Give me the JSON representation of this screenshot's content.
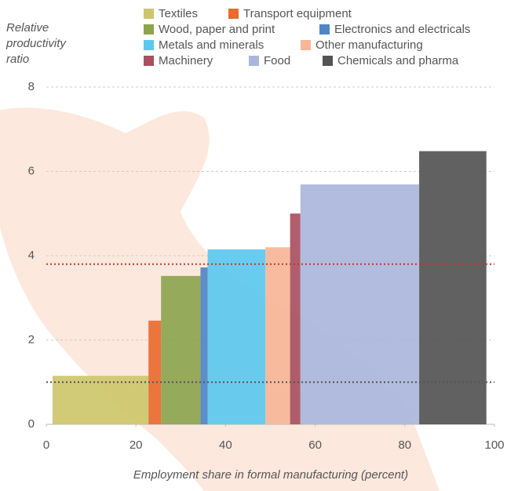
{
  "chart_data": {
    "type": "variable_width_bar",
    "ylabel": [
      "Relative",
      "productivity",
      "ratio"
    ],
    "xlabel": "Employment share in formal manufacturing (percent)",
    "xlim": [
      0,
      100
    ],
    "xticks": [
      0,
      20,
      40,
      60,
      80,
      100
    ],
    "ylim": [
      0,
      8
    ],
    "yticks": [
      0,
      2,
      4,
      6,
      8
    ],
    "grid": true,
    "series": [
      {
        "name": "Textiles",
        "color": "#cdc56a",
        "x_start": 1.4,
        "x_end": 22.8,
        "value": 1.15
      },
      {
        "name": "Transport equipment",
        "color": "#ea6a30",
        "x_start": 22.8,
        "x_end": 25.6,
        "value": 2.46
      },
      {
        "name": "Wood, paper and print",
        "color": "#8ca44e",
        "x_start": 25.6,
        "x_end": 34.4,
        "value": 3.52
      },
      {
        "name": "Electronics and electricals",
        "color": "#4f86c6",
        "x_start": 34.4,
        "x_end": 36.0,
        "value": 3.72
      },
      {
        "name": "Metals and minerals",
        "color": "#5bc8ef",
        "x_start": 36.0,
        "x_end": 48.9,
        "value": 4.15
      },
      {
        "name": "Other manufacturing",
        "color": "#f7b597",
        "x_start": 48.9,
        "x_end": 54.4,
        "value": 4.2
      },
      {
        "name": "Machinery",
        "color": "#a94f5f",
        "x_start": 54.4,
        "x_end": 56.7,
        "value": 5.0
      },
      {
        "name": "Food",
        "color": "#aab6dc",
        "x_start": 56.7,
        "x_end": 83.2,
        "value": 5.69
      },
      {
        "name": "Chemicals and pharma",
        "color": "#545454",
        "x_start": 83.2,
        "x_end": 98.2,
        "value": 6.48
      }
    ],
    "reference_lines": [
      {
        "value": 3.8,
        "color": "#c0392b"
      },
      {
        "value": 1.0,
        "color": "#555555"
      }
    ]
  }
}
